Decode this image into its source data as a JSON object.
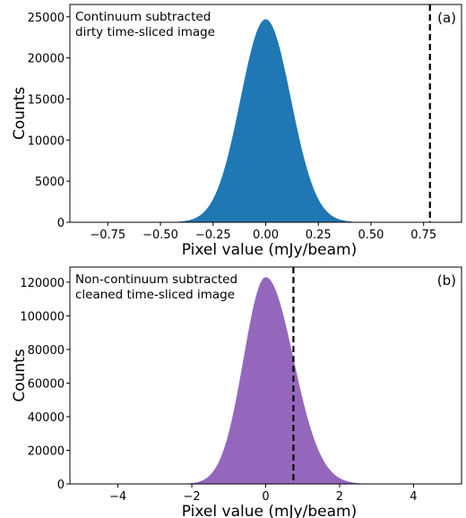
{
  "chart_data": [
    {
      "type": "histogram",
      "panel_label": "(a)",
      "annotation": [
        "Continuum subtracted",
        "dirty time-sliced image"
      ],
      "xlabel": "Pixel value (mJy/beam)",
      "ylabel": "Counts",
      "xlim": [
        -0.93,
        0.93
      ],
      "ylim": [
        0,
        26500
      ],
      "xticks": [
        -0.75,
        -0.5,
        -0.25,
        0.0,
        0.25,
        0.5,
        0.75
      ],
      "xtick_labels": [
        "−0.75",
        "−0.50",
        "−0.25",
        "0.00",
        "0.25",
        "0.50",
        "0.75"
      ],
      "yticks": [
        0,
        5000,
        10000,
        15000,
        20000,
        25000
      ],
      "ytick_labels": [
        "0",
        "5000",
        "10000",
        "15000",
        "20000",
        "25000"
      ],
      "color": "#1f77b4",
      "distribution": {
        "shape": "gaussian",
        "mean": 0.0,
        "sigma": 0.12,
        "peak": 24700,
        "extent": [
          -0.6,
          0.6
        ]
      },
      "threshold_line": {
        "x": 0.78,
        "style": "dashed",
        "color": "#000000"
      }
    },
    {
      "type": "histogram",
      "panel_label": "(b)",
      "annotation": [
        "Non-continuum subtracted",
        "cleaned time-sliced image"
      ],
      "xlabel": "Pixel value (mJy/beam)",
      "ylabel": "Counts",
      "xlim": [
        -5.3,
        5.3
      ],
      "ylim": [
        0,
        129000
      ],
      "xticks": [
        -4,
        -2,
        0,
        2,
        4
      ],
      "xtick_labels": [
        "−4",
        "−2",
        "0",
        "2",
        "4"
      ],
      "yticks": [
        0,
        20000,
        40000,
        60000,
        80000,
        100000,
        120000
      ],
      "ytick_labels": [
        "0",
        "20000",
        "40000",
        "60000",
        "80000",
        "100000",
        "120000"
      ],
      "color": "#9467bd",
      "distribution": {
        "shape": "skewed-gaussian",
        "mode": 0.0,
        "sigma_left": 0.6,
        "sigma_right": 0.75,
        "peak": 123000,
        "extent": [
          -4.5,
          4.5
        ]
      },
      "threshold_line": {
        "x": 0.75,
        "style": "dashed",
        "color": "#000000"
      }
    }
  ]
}
